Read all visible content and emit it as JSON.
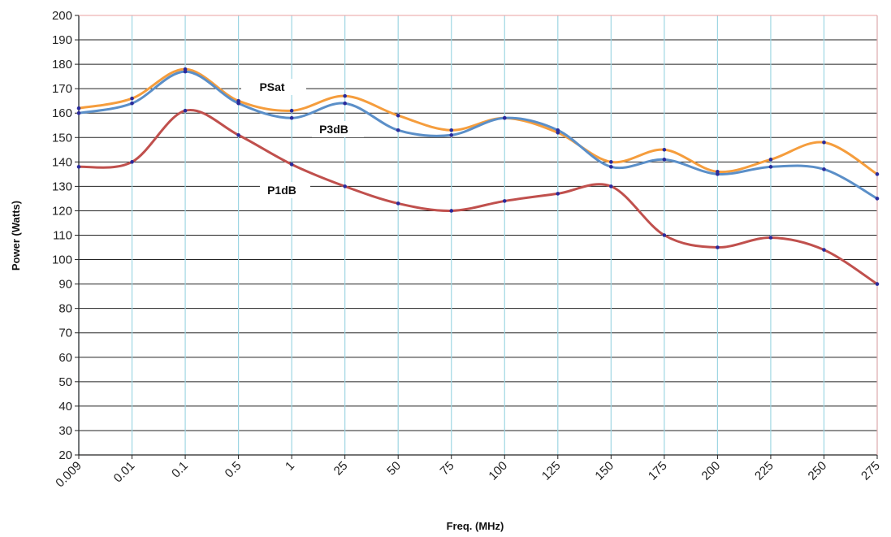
{
  "chart_data": {
    "type": "line",
    "title": "",
    "xlabel": "Freq. (MHz)",
    "ylabel": "Power (Watts)",
    "categories": [
      "0.009",
      "0.01",
      "0.1",
      "0.5",
      "1",
      "25",
      "50",
      "75",
      "100",
      "125",
      "150",
      "175",
      "200",
      "225",
      "250",
      "275"
    ],
    "ylim": [
      20,
      200
    ],
    "yticks": [
      20,
      30,
      40,
      50,
      60,
      70,
      80,
      90,
      100,
      110,
      120,
      130,
      140,
      150,
      160,
      170,
      180,
      190,
      200
    ],
    "grid": true,
    "legend": "inline labels",
    "series": [
      {
        "name": "PSat",
        "color": "#f59d3d",
        "values": [
          162,
          166,
          178,
          165,
          161,
          167,
          159,
          153,
          158,
          152,
          140,
          145,
          136,
          141,
          148,
          135
        ]
      },
      {
        "name": "P3dB",
        "color": "#5b8fc8",
        "values": [
          160,
          164,
          177,
          164,
          158,
          164,
          153,
          151,
          158,
          153,
          138,
          141,
          135,
          138,
          137,
          125
        ]
      },
      {
        "name": "P1dB",
        "color": "#c0504d",
        "values": [
          138,
          140,
          161,
          151,
          139,
          130,
          123,
          120,
          124,
          127,
          130,
          110,
          105,
          109,
          104,
          90
        ]
      }
    ]
  }
}
